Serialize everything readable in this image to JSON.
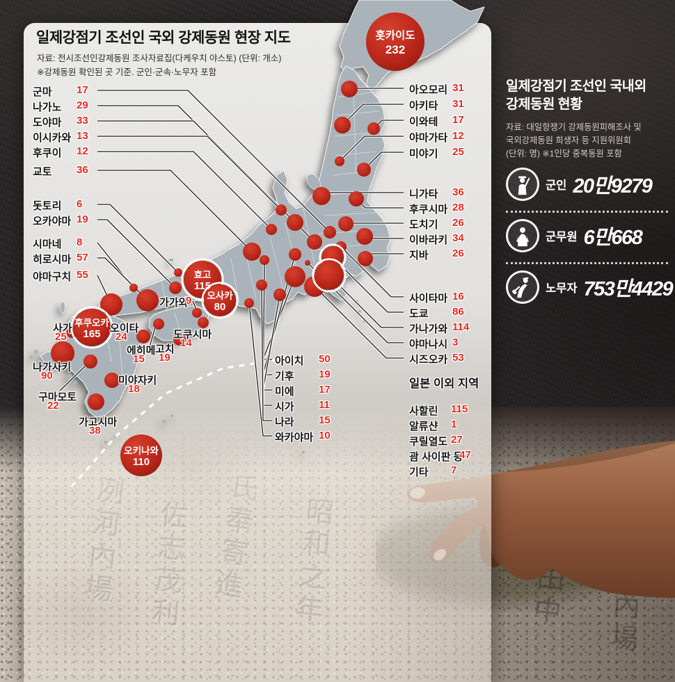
{
  "map_panel": {
    "title": "일제강점기 조선인 국외 강제동원 현장 지도",
    "source": "자료: 전시조선인강제동원 조사자료집(다케우치 야스토) (단위: 개소)",
    "note": "※강제동원 확인된 곳 기준. 군인·군속·노무자 포함"
  },
  "chart_data": {
    "type": "bubble_map",
    "title": "일제강점기 조선인 국외 강제동원 현장 지도",
    "unit": "개소",
    "regions": [
      {
        "name": "군마",
        "value": 17
      },
      {
        "name": "나가노",
        "value": 29
      },
      {
        "name": "도야마",
        "value": 33
      },
      {
        "name": "이시카와",
        "value": 13
      },
      {
        "name": "후쿠이",
        "value": 12
      },
      {
        "name": "교토",
        "value": 36
      },
      {
        "name": "돗토리",
        "value": 6
      },
      {
        "name": "오카야마",
        "value": 19
      },
      {
        "name": "시마네",
        "value": 8
      },
      {
        "name": "히로시마",
        "value": 57
      },
      {
        "name": "야마구치",
        "value": 55
      },
      {
        "name": "아오모리",
        "value": 31
      },
      {
        "name": "아키타",
        "value": 31
      },
      {
        "name": "이와테",
        "value": 17
      },
      {
        "name": "야마가타",
        "value": 12
      },
      {
        "name": "미야기",
        "value": 25
      },
      {
        "name": "니가타",
        "value": 36
      },
      {
        "name": "후쿠시마",
        "value": 28
      },
      {
        "name": "도치기",
        "value": 26
      },
      {
        "name": "이바라키",
        "value": 34
      },
      {
        "name": "지바",
        "value": 26
      },
      {
        "name": "사이타마",
        "value": 16
      },
      {
        "name": "도쿄",
        "value": 86
      },
      {
        "name": "가나가와",
        "value": 114
      },
      {
        "name": "야마나시",
        "value": 3
      },
      {
        "name": "시즈오카",
        "value": 53
      },
      {
        "name": "아이치",
        "value": 50
      },
      {
        "name": "기후",
        "value": 19
      },
      {
        "name": "미에",
        "value": 17
      },
      {
        "name": "시가",
        "value": 11
      },
      {
        "name": "나라",
        "value": 15
      },
      {
        "name": "와카야마",
        "value": 10
      },
      {
        "name": "사가",
        "value": 25
      },
      {
        "name": "오이타",
        "value": 24
      },
      {
        "name": "에히메",
        "value": 15
      },
      {
        "name": "고치",
        "value": 19
      },
      {
        "name": "도쿠시마",
        "value": 14
      },
      {
        "name": "미야자키",
        "value": 18
      },
      {
        "name": "구마모토",
        "value": 22
      },
      {
        "name": "나가사키",
        "value": 90
      },
      {
        "name": "가고시마",
        "value": 38
      },
      {
        "name": "가가와",
        "value": 9
      },
      {
        "name": "홋카이도",
        "value": 232
      },
      {
        "name": "후쿠오카",
        "value": 165
      },
      {
        "name": "효고",
        "value": 115
      },
      {
        "name": "오사카",
        "value": 80
      },
      {
        "name": "오키나와",
        "value": 110
      }
    ],
    "outside_japan": {
      "title": "일본 이외 지역",
      "items": [
        {
          "name": "사할린",
          "value": 115
        },
        {
          "name": "알류샨",
          "value": 1
        },
        {
          "name": "쿠릴열도",
          "value": 27
        },
        {
          "name": "괌 사이판 등",
          "value": 47
        },
        {
          "name": "기타",
          "value": 7
        }
      ]
    }
  },
  "right_panel": {
    "title_line1": "일제강점기 조선인 국내외",
    "title_line2": "강제동원 현황",
    "source_line1": "자료: 대일항쟁기 강제동원피해조사 및",
    "source_line2": "국외강제동원 희생자 등 지원위원회",
    "source_line3": "(단위: 명) ※1인당 중복동원 포함",
    "stats": [
      {
        "icon": "soldier-icon",
        "label": "군인",
        "value": "20만9279"
      },
      {
        "icon": "military-civilian-icon",
        "label": "군무원",
        "value": "6만668"
      },
      {
        "icon": "laborer-icon",
        "label": "노무자",
        "value": "753만4429"
      }
    ]
  },
  "colors": {
    "bubble_red": "#c0271b",
    "value_red": "#e8281d",
    "map_gray": "#aab3b9",
    "panel_bg": "#f0efec"
  },
  "background": {
    "description": "stone memorial with carved characters touched by an elderly hand",
    "engraved_glyphs": [
      "冽河內場",
      "佐志茂利",
      "氏奉寄進",
      "昭和之年",
      "山川田中"
    ]
  }
}
